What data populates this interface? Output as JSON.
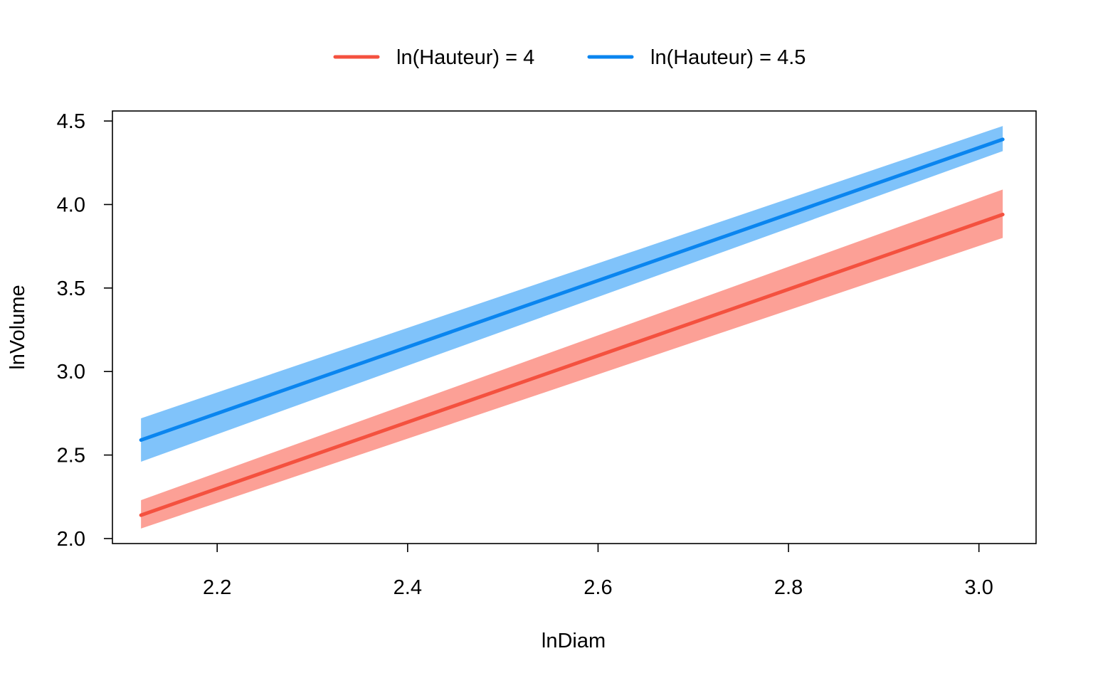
{
  "chart_data": {
    "type": "line",
    "title": "",
    "xlabel": "lnDiam",
    "ylabel": "lnVolume",
    "xlim": [
      2.09,
      3.06
    ],
    "ylim": [
      1.97,
      4.56
    ],
    "xticks": [
      2.2,
      2.4,
      2.6,
      2.8,
      3.0
    ],
    "xtick_labels": [
      "2.2",
      "2.4",
      "2.6",
      "2.8",
      "3.0"
    ],
    "yticks": [
      2.0,
      2.5,
      3.0,
      3.5,
      4.0,
      4.5
    ],
    "ytick_labels": [
      "2.0",
      "2.5",
      "3.0",
      "3.5",
      "4.0",
      "4.5"
    ],
    "grid": false,
    "legend_position": "top-center",
    "series": [
      {
        "name": "ln(Hauteur) = 4",
        "color": "#f4513f",
        "band_color": "#fca096",
        "x": [
          2.12,
          3.025
        ],
        "y": [
          2.14,
          3.94
        ],
        "lower": [
          2.06,
          3.8
        ],
        "upper": [
          2.23,
          4.09
        ]
      },
      {
        "name": "ln(Hauteur) = 4.5",
        "color": "#0a85ef",
        "band_color": "#80c3fa",
        "x": [
          2.12,
          3.025
        ],
        "y": [
          2.59,
          4.39
        ],
        "lower": [
          2.46,
          4.32
        ],
        "upper": [
          2.72,
          4.47
        ]
      }
    ]
  }
}
